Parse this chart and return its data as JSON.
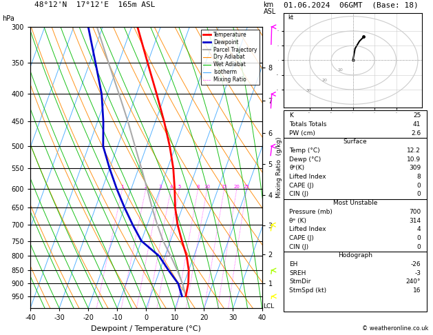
{
  "title_left": "48°12'N  17°12'E  165m ASL",
  "title_right": "01.06.2024  06GMT  (Base: 18)",
  "xlabel": "Dewpoint / Temperature (°C)",
  "pressure_levels": [
    300,
    350,
    400,
    450,
    500,
    550,
    600,
    650,
    700,
    750,
    800,
    850,
    900,
    950
  ],
  "x_min": -40,
  "x_max": 40,
  "p_min": 300,
  "p_max": 1000,
  "skew_factor": 35.0,
  "temp_profile": {
    "pressure": [
      950,
      900,
      850,
      800,
      750,
      700,
      650,
      600,
      550,
      500,
      450,
      400,
      350,
      300
    ],
    "temperature": [
      12.2,
      11.5,
      10.0,
      7.5,
      4.0,
      0.5,
      -2.5,
      -5.0,
      -8.0,
      -12.0,
      -17.0,
      -23.0,
      -30.0,
      -38.0
    ]
  },
  "dewp_profile": {
    "pressure": [
      950,
      900,
      850,
      800,
      750,
      700,
      650,
      600,
      550,
      500,
      450,
      400,
      350,
      300
    ],
    "temperature": [
      10.9,
      8.0,
      3.0,
      -2.0,
      -10.0,
      -15.0,
      -20.0,
      -25.0,
      -30.0,
      -35.0,
      -38.0,
      -42.0,
      -48.0,
      -55.0
    ]
  },
  "parcel_profile": {
    "pressure": [
      950,
      900,
      850,
      800,
      750,
      700,
      650,
      600,
      550,
      500,
      450,
      400,
      350,
      300
    ],
    "temperature": [
      12.2,
      9.5,
      6.0,
      2.0,
      -2.5,
      -6.5,
      -10.5,
      -14.5,
      -19.0,
      -24.0,
      -29.5,
      -36.0,
      -43.5,
      -52.0
    ]
  },
  "stats": {
    "K": 25,
    "Totals Totals": 41,
    "PW (cm)": 2.6,
    "Surface": {
      "Temp (C)": 12.2,
      "Dewp (C)": 10.9,
      "theta_e (K)": 309,
      "Lifted Index": 8,
      "CAPE (J)": 0,
      "CIN (J)": 0
    },
    "Most Unstable": {
      "Pressure (mb)": 700,
      "theta_e (K)": 314,
      "Lifted Index": 4,
      "CAPE (J)": 0,
      "CIN (J)": 0
    },
    "Hodograph": {
      "EH": -26,
      "SREH": -3,
      "StmDir": "240°",
      "StmSpd (kt)": 16
    }
  },
  "mixing_ratio_values": [
    1,
    2,
    3,
    4,
    5,
    8,
    10,
    15,
    20,
    25
  ],
  "lcl_pressure": 960,
  "km_ticks": {
    "pressures": [
      898,
      795,
      701,
      616,
      540,
      472,
      411,
      357
    ],
    "labels": [
      "1",
      "2",
      "3",
      "4",
      "5",
      "6",
      "7",
      "8"
    ]
  },
  "colors": {
    "temperature": "#ff0000",
    "dewpoint": "#0000cc",
    "parcel": "#aaaaaa",
    "dry_adiabat": "#ff8800",
    "wet_adiabat": "#00bb00",
    "isotherm": "#44aaff",
    "mixing_ratio": "#ff00ff",
    "background": "#ffffff",
    "grid": "#000000"
  },
  "hodo_points": [
    [
      0,
      0
    ],
    [
      1,
      8
    ],
    [
      3,
      13
    ],
    [
      5,
      16
    ]
  ],
  "wind_barbs": {
    "pressures": [
      300,
      400,
      500,
      700,
      850,
      950
    ],
    "u": [
      -5,
      -8,
      -10,
      -8,
      -5,
      -3
    ],
    "v": [
      15,
      12,
      8,
      5,
      3,
      2
    ],
    "colors": [
      "#ff00ff",
      "#ff00ff",
      "#ff00ff",
      "#ffff00",
      "#aaff00",
      "#ffff00"
    ]
  }
}
